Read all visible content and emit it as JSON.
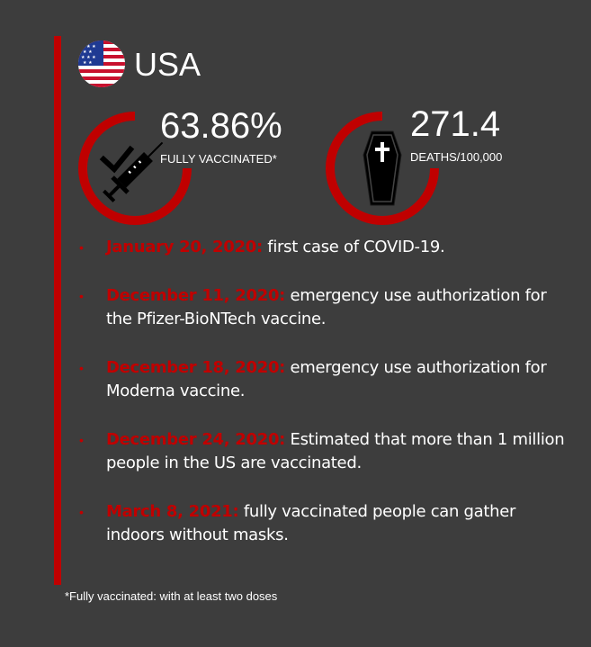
{
  "header": {
    "country": "USA",
    "flag_icon": "us-flag-icon"
  },
  "stats": [
    {
      "value": "63.86%",
      "label": "FULLY VACCINATED*",
      "icon": "vaccine-syringe-icon",
      "progress": 0.6386
    },
    {
      "value": "271.4",
      "label": "DEATHS/100,000",
      "icon": "coffin-icon",
      "progress": 0.72
    }
  ],
  "timeline": [
    {
      "date": "January 20, 2020:",
      "text": "first case of COVID-19."
    },
    {
      "date": "December 11, 2020:",
      "text": "emergency use authorization for the Pfizer-BioNTech vaccine."
    },
    {
      "date": "December 18, 2020:",
      "text": "emergency use authorization for Moderna vaccine."
    },
    {
      "date": "December 24, 2020:",
      "text": "Estimated that more than 1 million people in the US are vaccinated."
    },
    {
      "date": "March 8, 2021:",
      "text": "fully vaccinated people can gather indoors without masks."
    }
  ],
  "footnote": "*Fully vaccinated: with at least two doses",
  "colors": {
    "background": "#3d3d3d",
    "accent": "#c00000",
    "text": "#ffffff"
  }
}
